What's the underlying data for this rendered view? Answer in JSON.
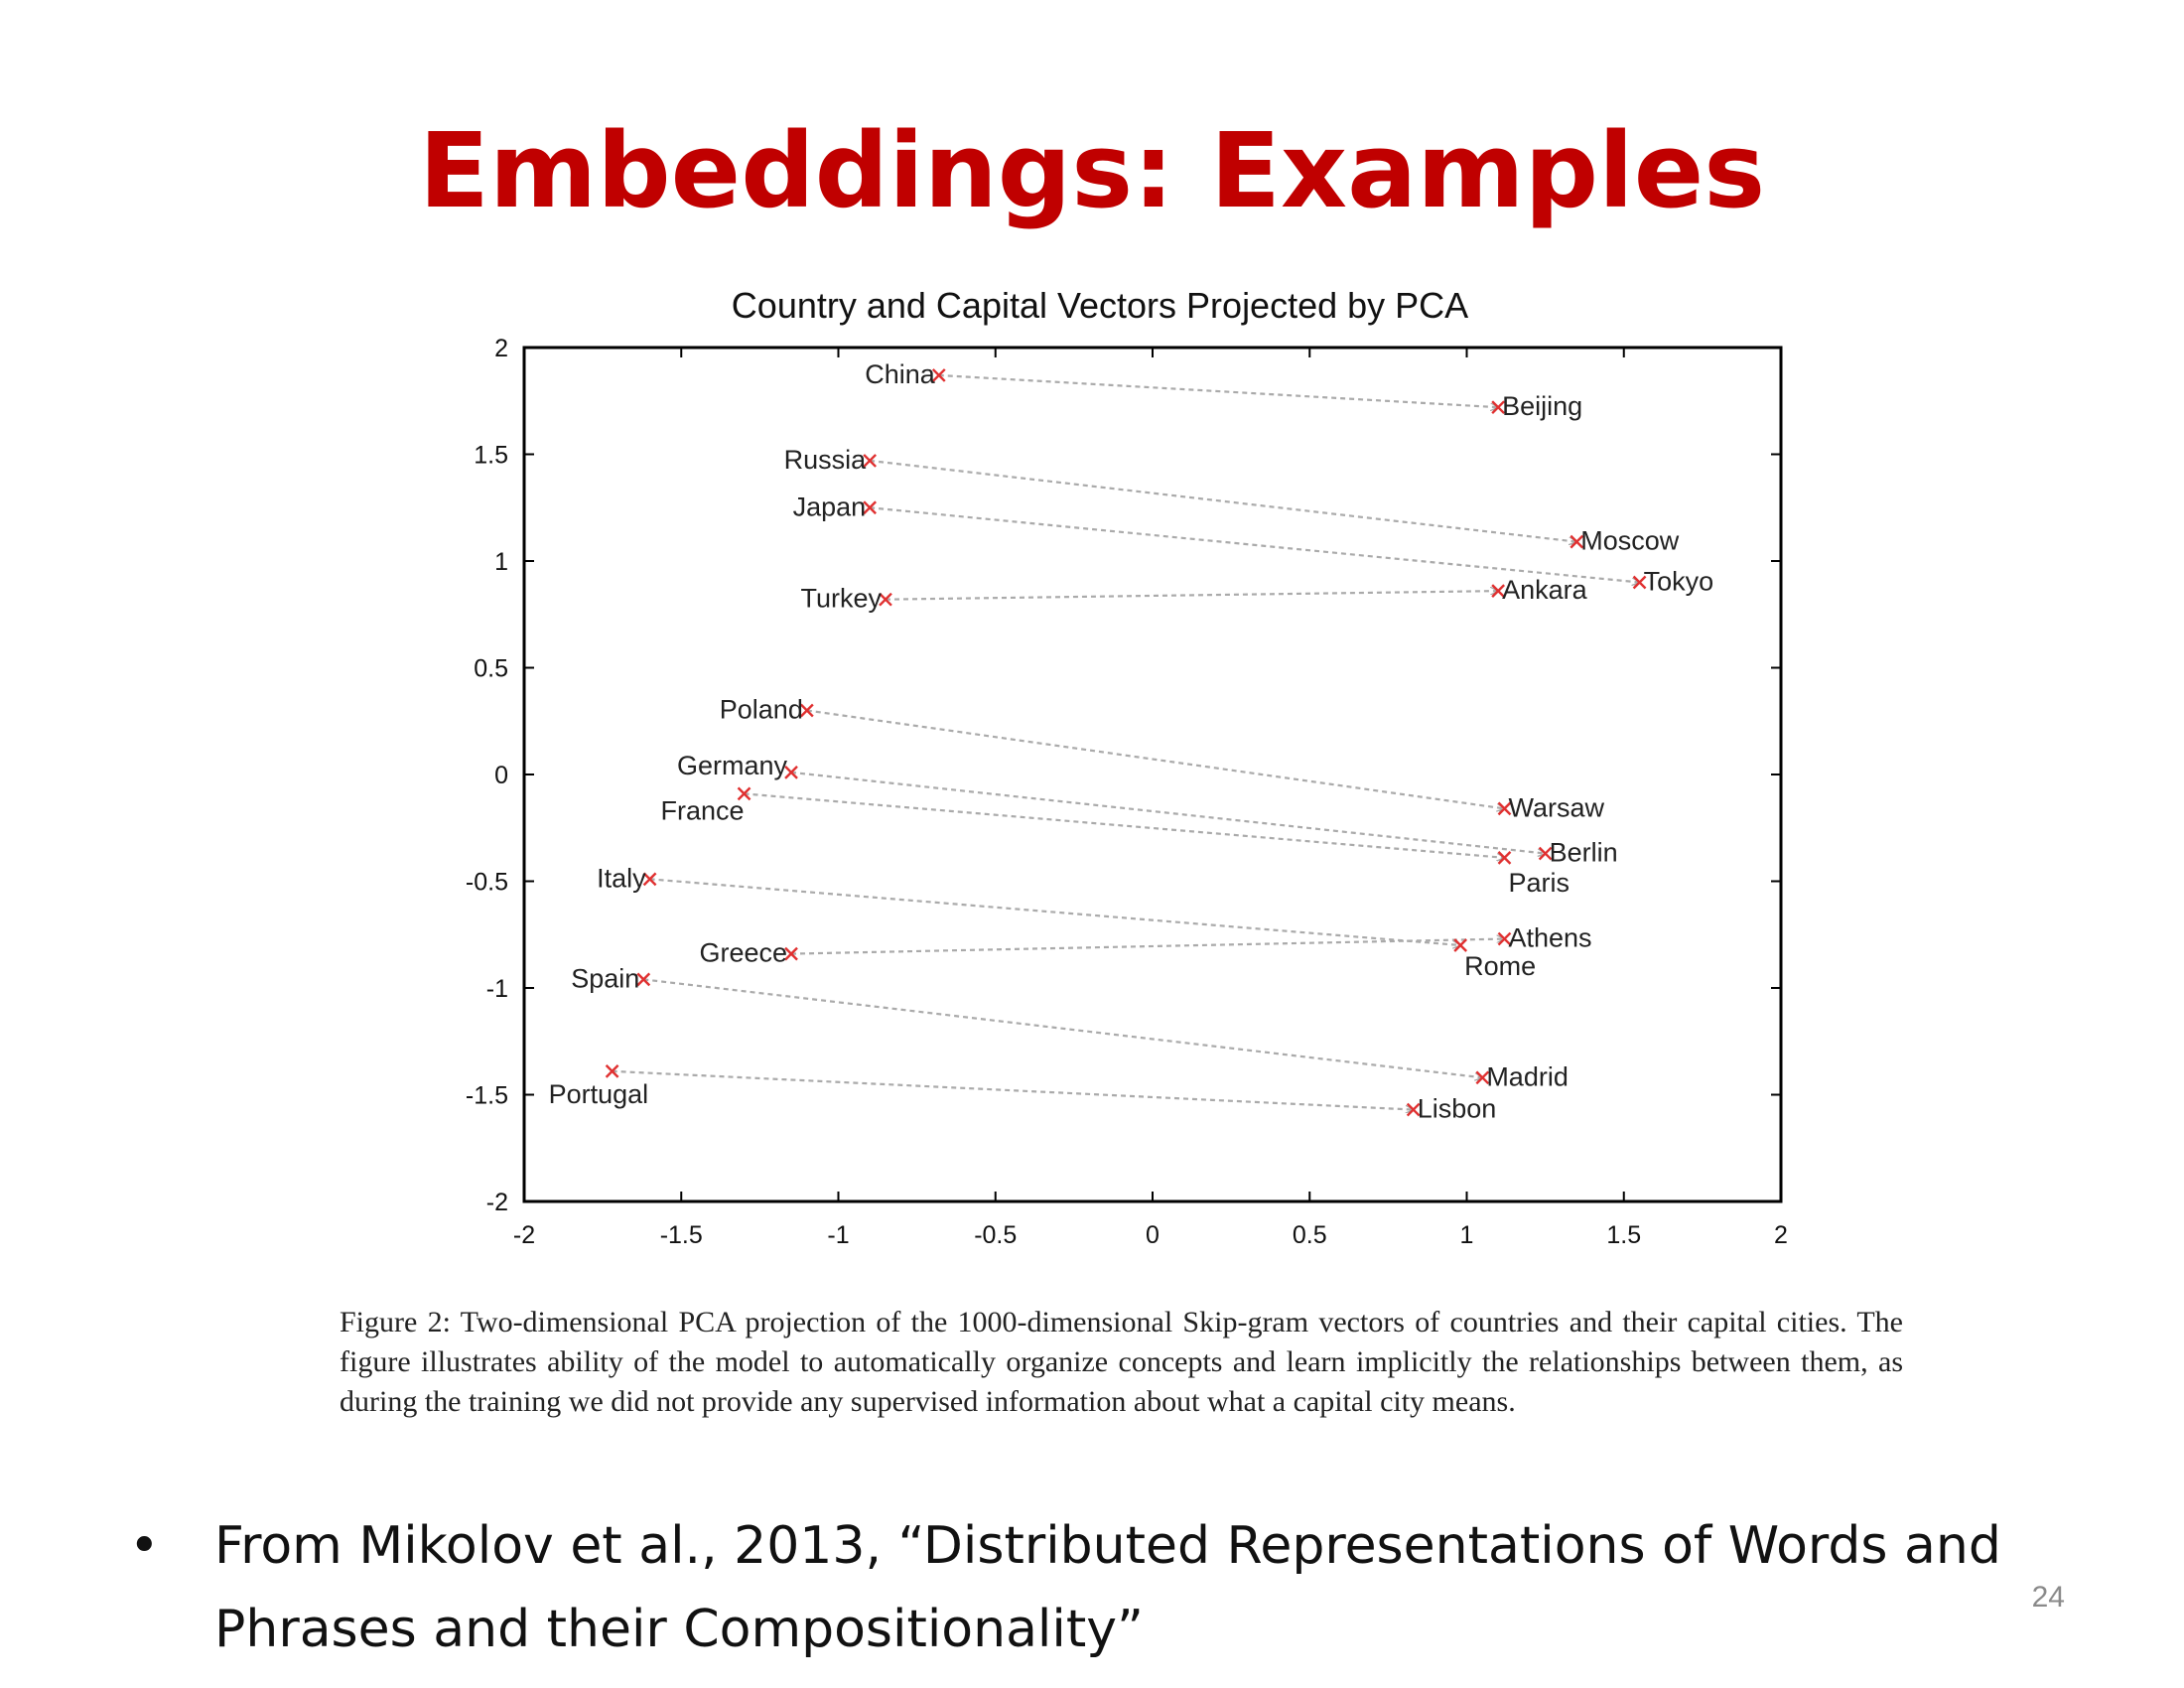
{
  "slide": {
    "title": "Embeddings: Examples",
    "title_color": "#c00000",
    "caption_label": "Figure 2:",
    "caption_text": "Two-dimensional PCA projection of the 1000-dimensional Skip-gram vectors of countries and their capital cities. The figure illustrates ability of the model to automatically organize concepts and learn implicitly the relationships between them, as during the training we did not provide any supervised information about what a capital city means.",
    "bullet_symbol": "•",
    "bullet_text": "From Mikolov et al., 2013, “Distributed Representations of Words and Phrases and their Compositionality”",
    "page_number": "24"
  },
  "chart_data": {
    "type": "scatter",
    "title": "Country and Capital Vectors Projected by PCA",
    "xlabel": "",
    "ylabel": "",
    "xlim": [
      -2,
      2
    ],
    "ylim": [
      -2,
      2
    ],
    "x_ticks": [
      "-2",
      "-1.5",
      "-1",
      "-0.5",
      "0",
      "0.5",
      "1",
      "1.5",
      "2"
    ],
    "y_ticks": [
      "2",
      "1.5",
      "1",
      "0.5",
      "0",
      "-0.5",
      "-1",
      "-1.5",
      "-2"
    ],
    "grid": false,
    "marker_color": "#e03030",
    "arrow_color": "#aaaaaa",
    "points": [
      {
        "label": "China",
        "x": -0.68,
        "y": 1.87,
        "kind": "country"
      },
      {
        "label": "Russia",
        "x": -0.9,
        "y": 1.47,
        "kind": "country"
      },
      {
        "label": "Japan",
        "x": -0.9,
        "y": 1.25,
        "kind": "country"
      },
      {
        "label": "Turkey",
        "x": -0.85,
        "y": 0.82,
        "kind": "country"
      },
      {
        "label": "Poland",
        "x": -1.1,
        "y": 0.3,
        "kind": "country"
      },
      {
        "label": "Germany",
        "x": -1.15,
        "y": 0.01,
        "kind": "country"
      },
      {
        "label": "France",
        "x": -1.3,
        "y": -0.09,
        "kind": "country"
      },
      {
        "label": "Italy",
        "x": -1.6,
        "y": -0.49,
        "kind": "country"
      },
      {
        "label": "Greece",
        "x": -1.15,
        "y": -0.84,
        "kind": "country"
      },
      {
        "label": "Spain",
        "x": -1.62,
        "y": -0.96,
        "kind": "country"
      },
      {
        "label": "Portugal",
        "x": -1.72,
        "y": -1.39,
        "kind": "country"
      },
      {
        "label": "Beijing",
        "x": 1.1,
        "y": 1.72,
        "kind": "capital"
      },
      {
        "label": "Moscow",
        "x": 1.35,
        "y": 1.09,
        "kind": "capital"
      },
      {
        "label": "Tokyo",
        "x": 1.55,
        "y": 0.9,
        "kind": "capital"
      },
      {
        "label": "Ankara",
        "x": 1.1,
        "y": 0.86,
        "kind": "capital"
      },
      {
        "label": "Warsaw",
        "x": 1.12,
        "y": -0.16,
        "kind": "capital"
      },
      {
        "label": "Berlin",
        "x": 1.25,
        "y": -0.37,
        "kind": "capital"
      },
      {
        "label": "Paris",
        "x": 1.12,
        "y": -0.39,
        "kind": "capital"
      },
      {
        "label": "Athens",
        "x": 1.12,
        "y": -0.77,
        "kind": "capital"
      },
      {
        "label": "Rome",
        "x": 0.98,
        "y": -0.8,
        "kind": "capital"
      },
      {
        "label": "Madrid",
        "x": 1.05,
        "y": -1.42,
        "kind": "capital"
      },
      {
        "label": "Lisbon",
        "x": 0.83,
        "y": -1.57,
        "kind": "capital"
      }
    ],
    "pairs": [
      [
        "China",
        "Beijing"
      ],
      [
        "Russia",
        "Moscow"
      ],
      [
        "Japan",
        "Tokyo"
      ],
      [
        "Turkey",
        "Ankara"
      ],
      [
        "Poland",
        "Warsaw"
      ],
      [
        "Germany",
        "Berlin"
      ],
      [
        "France",
        "Paris"
      ],
      [
        "Italy",
        "Rome"
      ],
      [
        "Greece",
        "Athens"
      ],
      [
        "Spain",
        "Madrid"
      ],
      [
        "Portugal",
        "Lisbon"
      ]
    ]
  }
}
